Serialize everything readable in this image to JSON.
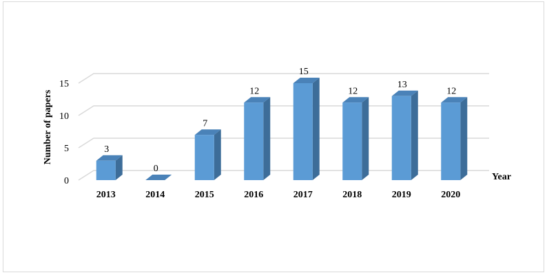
{
  "chart_data": {
    "type": "bar3d",
    "x_label": "Year",
    "y_label": "Number of papers",
    "categories": [
      "2013",
      "2014",
      "2015",
      "2016",
      "2017",
      "2018",
      "2019",
      "2020"
    ],
    "values": [
      3,
      0,
      7,
      12,
      15,
      12,
      13,
      12
    ],
    "color": "#5b9bd5",
    "ylim": [
      0,
      15
    ],
    "yticks": [
      0,
      5,
      10,
      15
    ],
    "grid": true
  }
}
